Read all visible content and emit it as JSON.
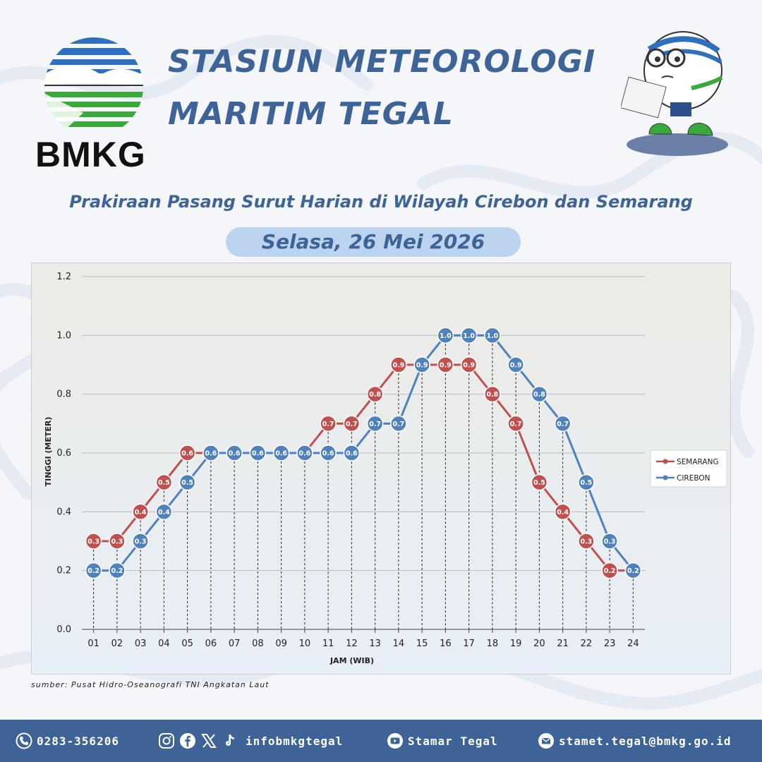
{
  "header": {
    "logo_text": "BMKG",
    "title_line1": "STASIUN METEOROLOGI",
    "title_line2": "MARITIM TEGAL",
    "subtitle": "Prakiraan Pasang Surut Harian di Wilayah Cirebon dan Semarang",
    "date": "Selasa, 26 Mei 2026"
  },
  "chart_data": {
    "type": "line",
    "title": "",
    "xlabel": "JAM (WIB)",
    "ylabel": "TINGGI (METER)",
    "ylim": [
      0,
      1.2
    ],
    "yticks": [
      "0.0",
      "0.2",
      "0.4",
      "0.6",
      "0.8",
      "1.0",
      "1.2"
    ],
    "categories": [
      "01",
      "02",
      "03",
      "04",
      "05",
      "06",
      "07",
      "08",
      "09",
      "10",
      "11",
      "12",
      "13",
      "14",
      "15",
      "16",
      "17",
      "18",
      "19",
      "20",
      "21",
      "22",
      "23",
      "24"
    ],
    "grid": true,
    "legend_position": "right",
    "series": [
      {
        "name": "SEMARANG",
        "color": "#c0504d",
        "values": [
          0.3,
          0.3,
          0.4,
          0.5,
          0.6,
          0.6,
          0.6,
          0.6,
          0.6,
          0.6,
          0.7,
          0.7,
          0.8,
          0.9,
          0.9,
          0.9,
          0.9,
          0.8,
          0.7,
          0.5,
          0.4,
          0.3,
          0.2,
          0.2
        ]
      },
      {
        "name": "CIREBON",
        "color": "#4f81bd",
        "values": [
          0.2,
          0.2,
          0.3,
          0.4,
          0.5,
          0.6,
          0.6,
          0.6,
          0.6,
          0.6,
          0.6,
          0.6,
          0.7,
          0.7,
          0.9,
          1.0,
          1.0,
          1.0,
          0.9,
          0.8,
          0.7,
          0.5,
          0.3,
          0.2
        ]
      }
    ]
  },
  "source": "sumber: Pusat Hidro-Oseanografi TNI Angkatan Laut",
  "footer": {
    "phone": "0283-356206",
    "social": "infobmkgtegal",
    "youtube": "Stamar Tegal",
    "email": "stamet.tegal@bmkg.go.id"
  },
  "colors": {
    "title": "#3e6396",
    "footer_bg": "#3e6396",
    "pill": "#bcd4f0"
  },
  "icons": [
    "phone-icon",
    "instagram-icon",
    "facebook-icon",
    "x-icon",
    "tiktok-icon",
    "youtube-icon",
    "email-icon"
  ]
}
